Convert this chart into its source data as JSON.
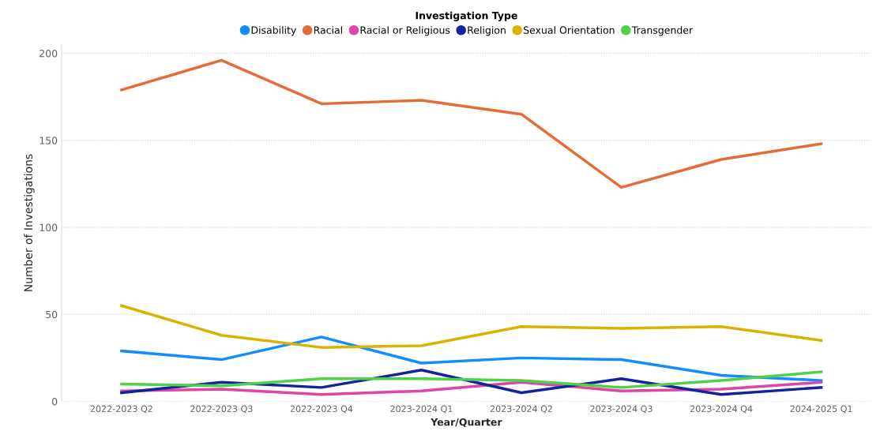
{
  "chart_data": {
    "type": "line",
    "xlabel": "Year/Quarter",
    "ylabel": "Number of Investigations",
    "legend_title": "Investigation Type",
    "categories": [
      "2022-2023 Q2",
      "2022-2023 Q3",
      "2022-2023 Q4",
      "2023-2024 Q1",
      "2023-2024 Q2",
      "2023-2024 Q3",
      "2023-2024 Q4",
      "2024-2025 Q1"
    ],
    "series": [
      {
        "name": "Disability",
        "color": "#118dff",
        "values": [
          29,
          24,
          37,
          22,
          25,
          24,
          15,
          12
        ]
      },
      {
        "name": "Racial",
        "color": "#e66c37",
        "values": [
          179,
          196,
          171,
          173,
          165,
          123,
          139,
          148
        ]
      },
      {
        "name": "Racial or Religious",
        "color": "#e044a7",
        "values": [
          6,
          7,
          4,
          6,
          11,
          6,
          7,
          11
        ]
      },
      {
        "name": "Religion",
        "color": "#12239e",
        "values": [
          5,
          11,
          8,
          18,
          5,
          13,
          4,
          8
        ]
      },
      {
        "name": "Sexual Orientation",
        "color": "#d9b300",
        "values": [
          55,
          38,
          31,
          32,
          43,
          42,
          43,
          35
        ]
      },
      {
        "name": "Transgender",
        "color": "#4fd14a",
        "values": [
          10,
          9,
          13,
          13,
          12,
          8,
          12,
          17
        ]
      }
    ],
    "ylim": [
      0,
      205
    ],
    "yticks": [
      0,
      50,
      100,
      150,
      200
    ],
    "grid": "y",
    "legend": "top",
    "marker": "none",
    "line_style": "solid"
  }
}
